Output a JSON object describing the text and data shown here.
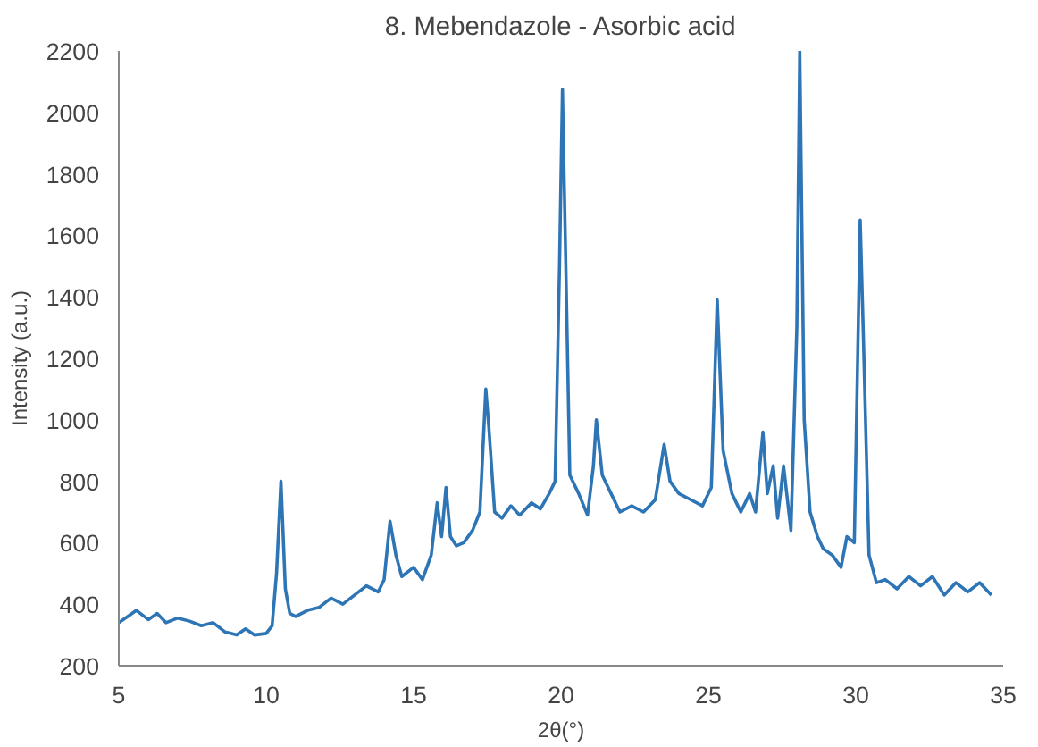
{
  "chart_data": {
    "type": "line",
    "title": "8. Mebendazole - Asorbic acid",
    "xlabel": "2θ(°)",
    "ylabel": "Intensity (a.u.)",
    "xlim": [
      5,
      35
    ],
    "xticks": [
      5,
      10,
      15,
      20,
      25,
      30,
      35
    ],
    "ylim": [
      200,
      2200
    ],
    "yticks": [
      200,
      400,
      600,
      800,
      1000,
      1200,
      1400,
      1600,
      1800,
      2000,
      2200
    ],
    "grid": false,
    "series": [
      {
        "color": "#2e75b6",
        "x": [
          5,
          5.3,
          5.6,
          6,
          6.3,
          6.6,
          7,
          7.4,
          7.8,
          8.2,
          8.6,
          9,
          9.3,
          9.6,
          10,
          10.2,
          10.35,
          10.5,
          10.65,
          10.8,
          11,
          11.4,
          11.8,
          12.2,
          12.6,
          13,
          13.4,
          13.8,
          14.0,
          14.2,
          14.4,
          14.6,
          15,
          15.3,
          15.6,
          15.8,
          15.95,
          16.1,
          16.25,
          16.45,
          16.7,
          17,
          17.25,
          17.45,
          17.55,
          17.75,
          18,
          18.3,
          18.6,
          19,
          19.3,
          19.6,
          19.8,
          19.95,
          20.05,
          20.3,
          20.6,
          20.9,
          21.1,
          21.2,
          21.4,
          21.7,
          22,
          22.4,
          22.8,
          23.2,
          23.5,
          23.7,
          24,
          24.4,
          24.8,
          25.1,
          25.3,
          25.5,
          25.8,
          26.1,
          26.4,
          26.6,
          26.85,
          27.0,
          27.2,
          27.35,
          27.55,
          27.8,
          28.0,
          28.1,
          28.25,
          28.45,
          28.7,
          28.9,
          29.2,
          29.5,
          29.7,
          29.95,
          30.15,
          30.25,
          30.45,
          30.7,
          31,
          31.4,
          31.8,
          32.2,
          32.6,
          33,
          33.4,
          33.8,
          34.2,
          34.6
        ],
        "values": [
          340,
          360,
          380,
          350,
          370,
          340,
          355,
          345,
          330,
          340,
          310,
          300,
          320,
          300,
          305,
          330,
          500,
          800,
          450,
          370,
          360,
          380,
          390,
          420,
          400,
          430,
          460,
          440,
          480,
          670,
          560,
          490,
          520,
          480,
          560,
          730,
          620,
          780,
          620,
          590,
          600,
          640,
          700,
          1100,
          980,
          700,
          680,
          720,
          690,
          730,
          710,
          760,
          800,
          1500,
          2075,
          820,
          760,
          690,
          850,
          1000,
          820,
          760,
          700,
          720,
          700,
          740,
          920,
          800,
          760,
          740,
          720,
          780,
          1390,
          900,
          760,
          700,
          760,
          700,
          960,
          760,
          850,
          680,
          850,
          640,
          1300,
          2200,
          1000,
          700,
          620,
          580,
          560,
          520,
          620,
          600,
          1650,
          1300,
          560,
          470,
          480,
          450,
          490,
          460,
          490,
          430,
          470,
          440,
          470,
          430
        ]
      }
    ]
  }
}
